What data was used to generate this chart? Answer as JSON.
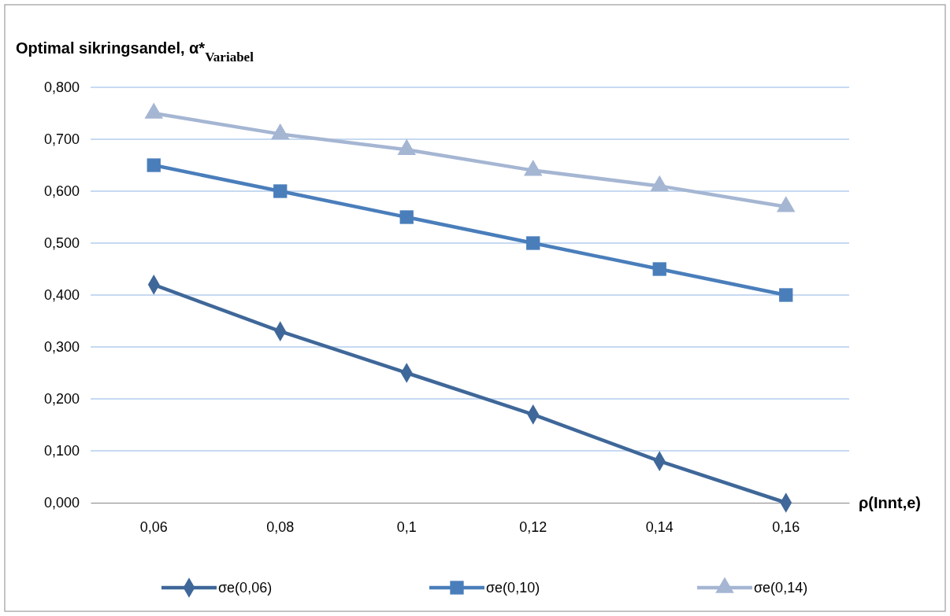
{
  "chart_data": {
    "type": "line",
    "title": "Optimal sikringsandel, α*$_{Variabel}$",
    "xlabel": "ρ(Innt,e)",
    "categories": [
      "0,06",
      "0,08",
      "0,1",
      "0,12",
      "0,14",
      "0,16"
    ],
    "series": [
      {
        "name": "σe(0,06)",
        "color": "#3f6799",
        "marker": "diamond",
        "values": [
          0.42,
          0.33,
          0.25,
          0.17,
          0.08,
          0
        ]
      },
      {
        "name": "σe(0,10)",
        "color": "#4a7ebb",
        "marker": "square",
        "values": [
          0.65,
          0.6,
          0.55,
          0.5,
          0.45,
          0.4
        ]
      },
      {
        "name": "σe(0,14)",
        "color": "#a5b6d3",
        "marker": "triangle",
        "values": [
          0.75,
          0.71,
          0.68,
          0.64,
          0.61,
          0.57
        ]
      }
    ],
    "ylim": [
      0,
      0.8
    ],
    "yticks": [
      {
        "value": 0,
        "label": "0,000"
      },
      {
        "value": 0.1,
        "label": "0,100"
      },
      {
        "value": 0.2,
        "label": "0,200"
      },
      {
        "value": 0.3,
        "label": "0,300"
      },
      {
        "value": 0.4,
        "label": "0,400"
      },
      {
        "value": 0.5,
        "label": "0,500"
      },
      {
        "value": 0.6,
        "label": "0,600"
      },
      {
        "value": 0.7,
        "label": "0,700"
      },
      {
        "value": 0.8,
        "label": "0,800"
      }
    ],
    "grid": "y",
    "legend": "bottom",
    "line_style": "solid"
  }
}
